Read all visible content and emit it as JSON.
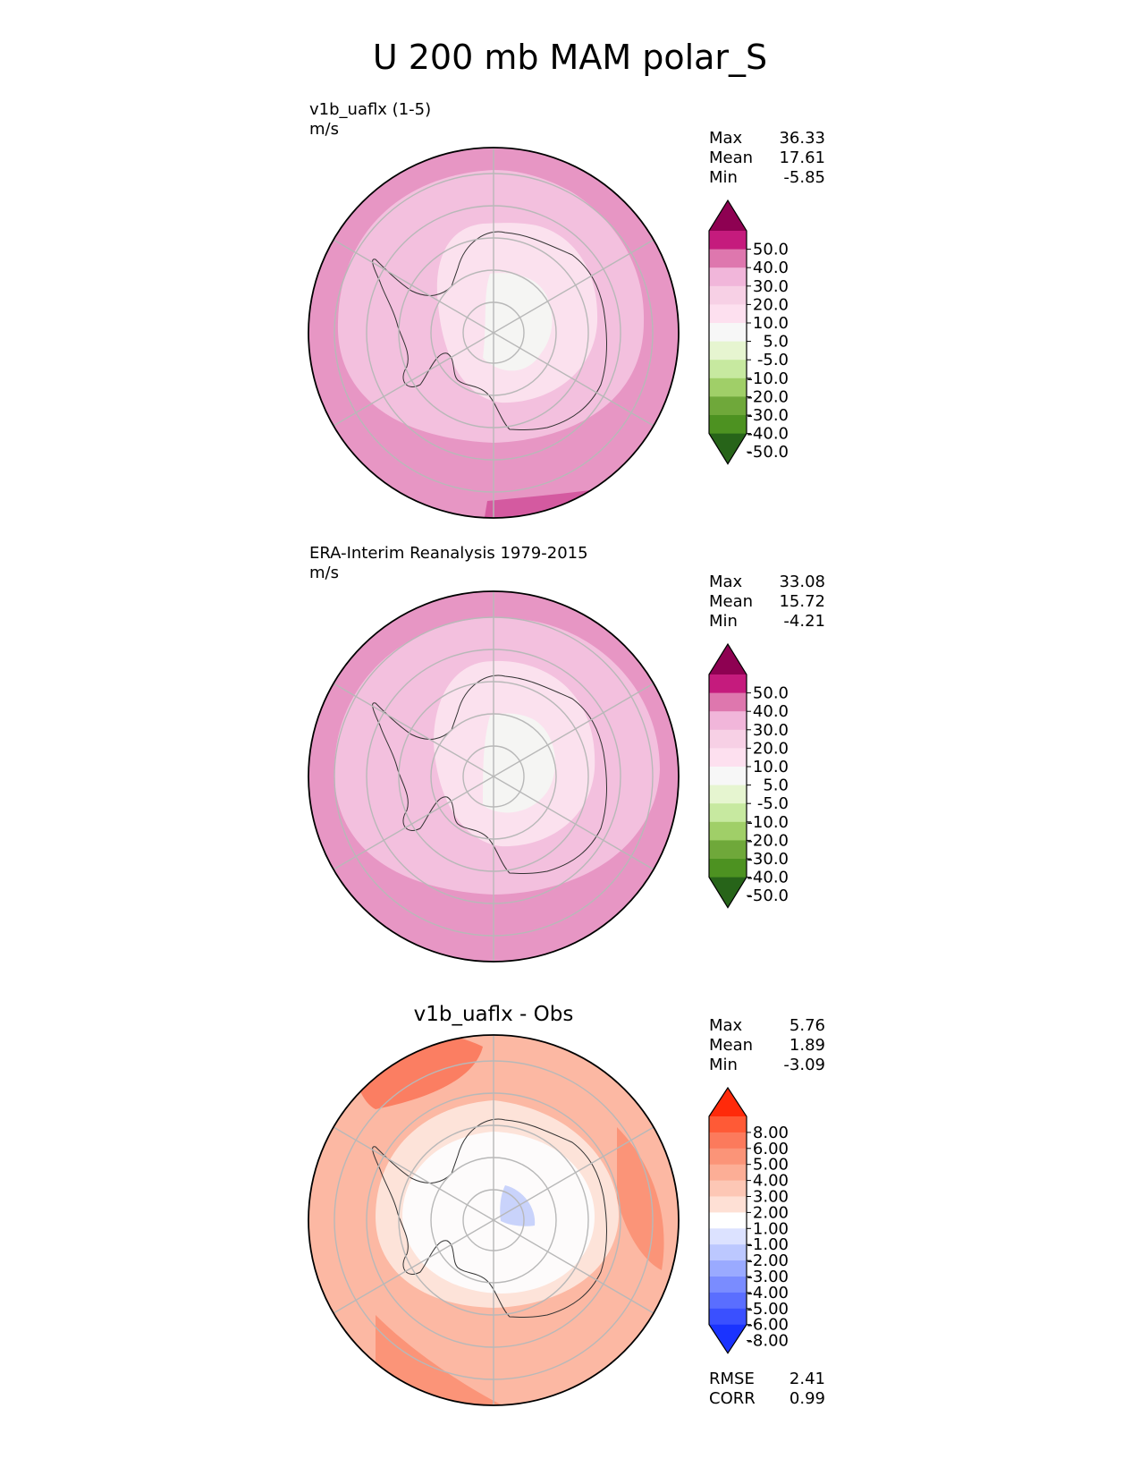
{
  "title": "U 200 mb MAM polar_S",
  "panels": [
    {
      "label_line1": "v1b_uaflx (1-5)",
      "label_line2": "m/s",
      "stats": [
        {
          "label": "Max",
          "value": "36.33"
        },
        {
          "label": "Mean",
          "value": "17.61"
        },
        {
          "label": "Min",
          "value": "-5.85"
        }
      ]
    },
    {
      "label_line1": "ERA-Interim Reanalysis 1979-2015",
      "label_line2": "m/s",
      "stats": [
        {
          "label": "Max",
          "value": "33.08"
        },
        {
          "label": "Mean",
          "value": "15.72"
        },
        {
          "label": "Min",
          "value": "-4.21"
        }
      ]
    },
    {
      "title": "v1b_uaflx - Obs",
      "stats": [
        {
          "label": "Max",
          "value": "5.76"
        },
        {
          "label": "Mean",
          "value": "1.89"
        },
        {
          "label": "Min",
          "value": "-3.09"
        }
      ],
      "metrics": [
        {
          "label": "RMSE",
          "value": "2.41"
        },
        {
          "label": "CORR",
          "value": "0.99"
        }
      ]
    }
  ],
  "colorbars": {
    "field": {
      "ticks": [
        "50.0",
        "40.0",
        "30.0",
        "20.0",
        "10.0",
        "5.0",
        "-5.0",
        "-10.0",
        "-20.0",
        "-30.0",
        "-40.0",
        "-50.0"
      ],
      "colors": [
        "#8e0152",
        "#c51b7d",
        "#de77ae",
        "#f1b6da",
        "#f7d0e5",
        "#fde0ef",
        "#f7f7f7",
        "#e6f5d0",
        "#c7e9a0",
        "#a0cf68",
        "#6fa83a",
        "#4d9221",
        "#276419"
      ]
    },
    "diff": {
      "ticks": [
        "8.00",
        "6.00",
        "5.00",
        "4.00",
        "3.00",
        "2.00",
        "1.00",
        "-1.00",
        "-2.00",
        "-3.00",
        "-4.00",
        "-5.00",
        "-6.00",
        "-8.00"
      ],
      "colors": [
        "#ff2a0a",
        "#ff5a36",
        "#fc7a5c",
        "#fb9478",
        "#fcae96",
        "#fdc7b5",
        "#fee0d5",
        "#ffffff",
        "#dce2ff",
        "#bcc8ff",
        "#9aaaff",
        "#7a8cff",
        "#5a6eff",
        "#3a50ff",
        "#1a33ff"
      ]
    }
  },
  "chart_data": [
    {
      "type": "heatmap",
      "projection": "south-polar-stereographic",
      "title": "v1b_uaflx (1-5)",
      "units": "m/s",
      "levels": [
        -50,
        -40,
        -30,
        -20,
        -10,
        -5,
        5,
        10,
        20,
        30,
        40,
        50
      ],
      "max": 36.33,
      "mean": 17.61,
      "min": -5.85
    },
    {
      "type": "heatmap",
      "projection": "south-polar-stereographic",
      "title": "ERA-Interim Reanalysis 1979-2015",
      "units": "m/s",
      "levels": [
        -50,
        -40,
        -30,
        -20,
        -10,
        -5,
        5,
        10,
        20,
        30,
        40,
        50
      ],
      "max": 33.08,
      "mean": 15.72,
      "min": -4.21
    },
    {
      "type": "heatmap",
      "projection": "south-polar-stereographic",
      "title": "v1b_uaflx - Obs",
      "levels": [
        -8,
        -6,
        -5,
        -4,
        -3,
        -2,
        -1,
        1,
        2,
        3,
        4,
        5,
        6,
        8
      ],
      "max": 5.76,
      "mean": 1.89,
      "min": -3.09,
      "rmse": 2.41,
      "corr": 0.99
    }
  ]
}
